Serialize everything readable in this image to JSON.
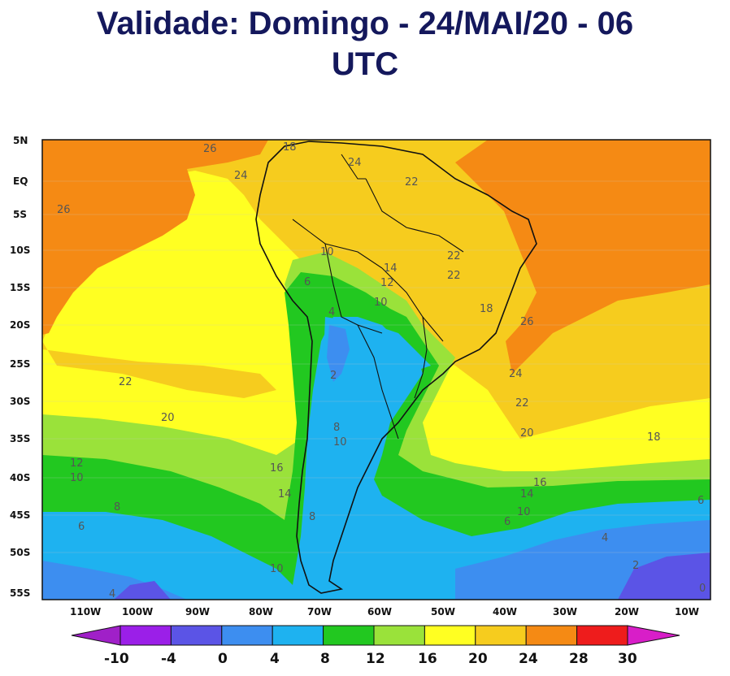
{
  "title": {
    "line1": "Validade: Domingo - 24/MAI/20 - 06",
    "line2": "UTC"
  },
  "map": {
    "lat_labels": [
      "5N",
      "EQ",
      "5S",
      "10S",
      "15S",
      "20S",
      "25S",
      "30S",
      "35S",
      "40S",
      "45S",
      "50S",
      "55S"
    ],
    "lon_labels": [
      "110W",
      "100W",
      "90W",
      "80W",
      "70W",
      "60W",
      "50W",
      "40W",
      "30W",
      "20W",
      "10W"
    ],
    "contour_labels": [
      "26",
      "24",
      "26",
      "18",
      "24",
      "22",
      "10",
      "14",
      "12",
      "6",
      "10",
      "4",
      "22",
      "22",
      "18",
      "26",
      "24",
      "22",
      "20",
      "22",
      "20",
      "18",
      "2",
      "8",
      "10",
      "12",
      "10",
      "16",
      "14",
      "8",
      "6",
      "16",
      "14",
      "10",
      "6",
      "4",
      "2",
      "8",
      "10",
      "4",
      "6",
      "0"
    ]
  },
  "colorbar": {
    "ticks": [
      "-10",
      "-4",
      "0",
      "4",
      "8",
      "12",
      "16",
      "20",
      "24",
      "28",
      "30"
    ],
    "colors": [
      "#9b1fe8",
      "#5b54e6",
      "#3d8ef0",
      "#1eb2f0",
      "#22c820",
      "#9ae23a",
      "#ffff22",
      "#f6cc1e",
      "#f58a14",
      "#ee1c1c"
    ],
    "end_color_left": "#a020c8",
    "end_color_right": "#d81ec8"
  }
}
